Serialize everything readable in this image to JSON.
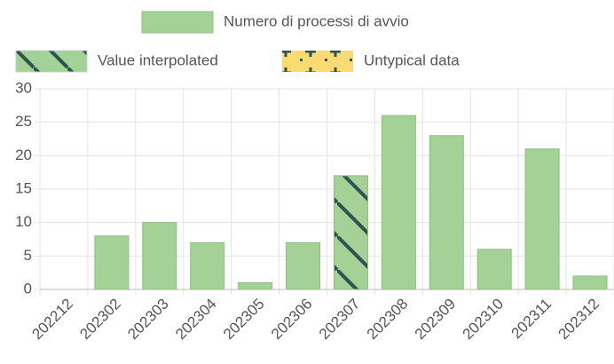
{
  "chart_data": {
    "type": "bar",
    "categories": [
      "202212",
      "202302",
      "202303",
      "202304",
      "202305",
      "202306",
      "202307",
      "202308",
      "202309",
      "202310",
      "202311",
      "202312"
    ],
    "series": [
      {
        "name": "Numero di processi di avvio",
        "color": "#a3d196",
        "values": [
          0,
          8,
          10,
          7,
          1,
          7,
          17,
          26,
          23,
          6,
          21,
          2
        ]
      }
    ],
    "interpolated": [
      false,
      false,
      false,
      false,
      false,
      false,
      true,
      false,
      false,
      false,
      false,
      false
    ],
    "pattern_legend": [
      {
        "name": "Value interpolated",
        "pattern": "hatch"
      },
      {
        "name": "Untypical data",
        "pattern": "plus"
      }
    ],
    "ylim": [
      0,
      30
    ],
    "yticks": [
      0,
      5,
      10,
      15,
      20,
      25,
      30
    ],
    "grid": true
  }
}
